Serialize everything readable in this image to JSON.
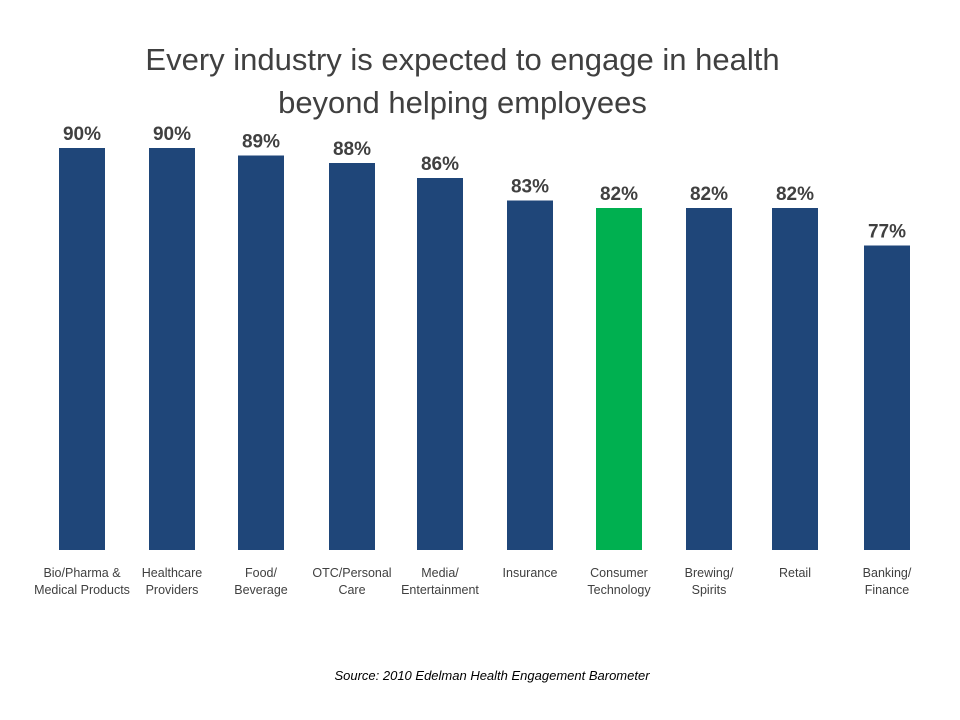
{
  "chart_data": {
    "type": "bar",
    "title": "Every industry is expected to engage in health beyond helping employees",
    "title_lines": [
      "Every industry is expected to engage in health",
      "beyond helping employees"
    ],
    "categories": [
      [
        "Bio/Pharma &",
        "Medical Products"
      ],
      [
        "Healthcare",
        "Providers"
      ],
      [
        "Food/",
        "Beverage"
      ],
      [
        "OTC/Personal",
        "Care"
      ],
      [
        "Media/",
        "Entertainment"
      ],
      [
        "Insurance"
      ],
      [
        "Consumer",
        "Technology"
      ],
      [
        "Brewing/",
        "Spirits"
      ],
      [
        "Retail"
      ],
      [
        "Banking/",
        "Finance"
      ]
    ],
    "values": [
      90,
      90,
      89,
      88,
      86,
      83,
      82,
      82,
      82,
      77
    ],
    "value_labels": [
      "90%",
      "90%",
      "89%",
      "88%",
      "86%",
      "83%",
      "82%",
      "82%",
      "82%",
      "77%"
    ],
    "highlight_index": 6,
    "colors": {
      "default": "#1F4679",
      "highlight": "#00B050"
    },
    "xlabel": "",
    "ylabel": "",
    "grid": false,
    "legend": "none",
    "source": "Source: 2010  Edelman Health Engagement Barometer"
  }
}
